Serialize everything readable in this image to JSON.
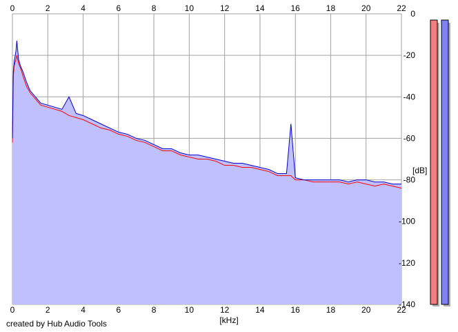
{
  "chart_data": {
    "type": "area",
    "title": "",
    "xlabel": "[kHz]",
    "ylabel": "[dB]",
    "xlim": [
      0,
      22
    ],
    "ylim": [
      -140,
      0
    ],
    "x_ticks": [
      0,
      2,
      4,
      6,
      8,
      10,
      12,
      14,
      16,
      18,
      20,
      22
    ],
    "y_ticks": [
      0,
      -20,
      -40,
      -60,
      -80,
      -100,
      -120,
      -140
    ],
    "grid": true,
    "series": [
      {
        "color": "#ff0000",
        "x": [
          0.0,
          0.05,
          0.1,
          0.2,
          0.25,
          0.35,
          0.45,
          0.6,
          0.8,
          1.0,
          1.3,
          1.6,
          2.0,
          2.4,
          2.8,
          3.2,
          3.6,
          4.0,
          4.5,
          5.0,
          5.5,
          6.0,
          6.5,
          7.0,
          7.5,
          8.0,
          8.5,
          9.0,
          9.5,
          10.0,
          10.5,
          11.0,
          11.5,
          12.0,
          12.5,
          13.0,
          13.5,
          14.0,
          14.5,
          15.0,
          15.5,
          15.75,
          16.0,
          16.5,
          17.0,
          17.5,
          18.0,
          18.5,
          19.0,
          19.5,
          20.0,
          20.5,
          21.0,
          21.5,
          22.0
        ],
        "y": [
          -62,
          -30,
          -25,
          -22,
          -20,
          -24,
          -26,
          -30,
          -35,
          -38,
          -41,
          -44,
          -45,
          -46,
          -47,
          -49,
          -50,
          -51,
          -53,
          -55,
          -56,
          -58,
          -59,
          -61,
          -62,
          -64,
          -66,
          -66,
          -68,
          -69,
          -70,
          -70,
          -71,
          -73,
          -73,
          -74,
          -74,
          -75,
          -76,
          -78,
          -78,
          -78,
          -80,
          -80,
          -81,
          -81,
          -81,
          -81,
          -82,
          -81,
          -82,
          -83,
          -82,
          -83,
          -84
        ]
      },
      {
        "color": "#0000cc",
        "x": [
          0.0,
          0.05,
          0.1,
          0.2,
          0.25,
          0.35,
          0.45,
          0.6,
          0.8,
          1.0,
          1.3,
          1.6,
          2.0,
          2.4,
          2.8,
          3.2,
          3.6,
          4.0,
          4.5,
          5.0,
          5.5,
          6.0,
          6.5,
          7.0,
          7.5,
          8.0,
          8.5,
          9.0,
          9.5,
          10.0,
          10.5,
          11.0,
          11.5,
          12.0,
          12.5,
          13.0,
          13.5,
          14.0,
          14.5,
          15.0,
          15.5,
          15.75,
          16.0,
          16.5,
          17.0,
          17.5,
          18.0,
          18.5,
          19.0,
          19.5,
          20.0,
          20.5,
          21.0,
          21.5,
          22.0
        ],
        "y": [
          -60,
          -28,
          -23,
          -18,
          -13,
          -22,
          -25,
          -28,
          -33,
          -37,
          -40,
          -43,
          -44,
          -45,
          -46,
          -40,
          -48,
          -49,
          -51,
          -53,
          -55,
          -57,
          -58,
          -60,
          -61,
          -63,
          -65,
          -65,
          -67,
          -68,
          -68,
          -69,
          -70,
          -71,
          -72,
          -72,
          -73,
          -74,
          -75,
          -77,
          -77,
          -53,
          -79,
          -80,
          -80,
          -80,
          -80,
          -80,
          -81,
          -80,
          -80,
          -81,
          -81,
          -82,
          -82
        ]
      }
    ],
    "area_fill": "#c0c0ff",
    "meters": [
      {
        "color": "#f08080",
        "level_db": -3
      },
      {
        "color": "#8080f0",
        "level_db": -3
      }
    ]
  },
  "credit": "created by Hub Audio Tools"
}
